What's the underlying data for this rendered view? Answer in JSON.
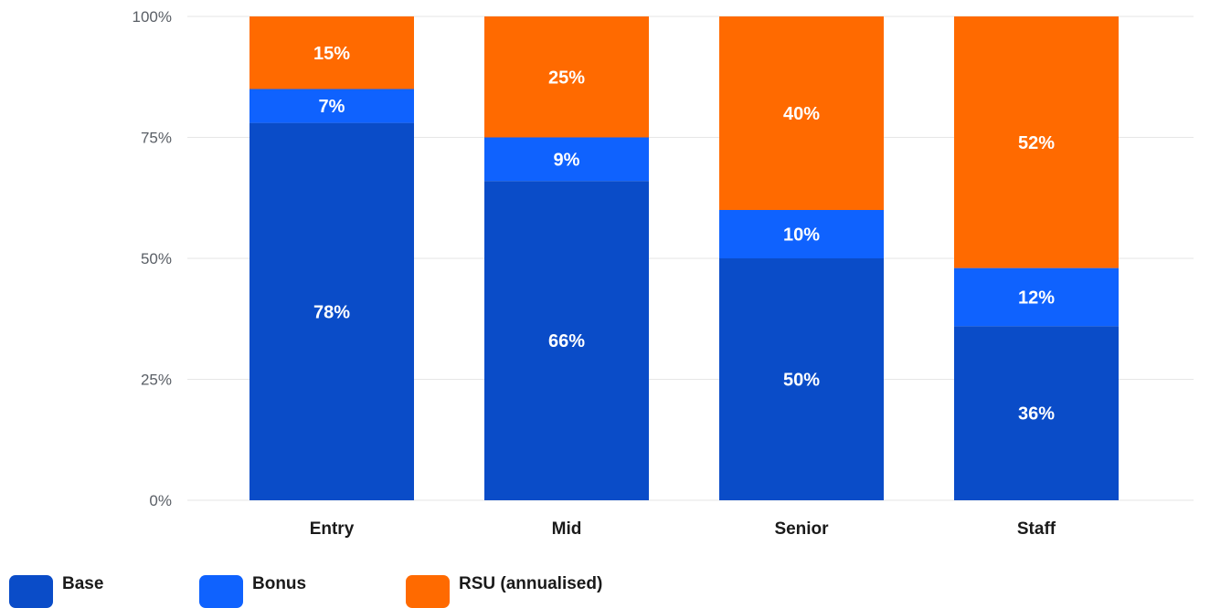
{
  "chart_data": {
    "type": "bar",
    "stacked": true,
    "categories": [
      "Entry",
      "Mid",
      "Senior",
      "Staff"
    ],
    "series": [
      {
        "name": "Base",
        "color": "#0a4cc8",
        "values": [
          78,
          66,
          50,
          36
        ]
      },
      {
        "name": "Bonus",
        "color": "#0f62fe",
        "values": [
          7,
          9,
          10,
          12
        ]
      },
      {
        "name": "RSU (annualised)",
        "color": "#ff6a00",
        "values": [
          15,
          25,
          40,
          52
        ]
      }
    ],
    "yticks": [
      0,
      25,
      50,
      75,
      100
    ],
    "ytick_labels": [
      "0%",
      "25%",
      "50%",
      "75%",
      "100%"
    ],
    "ylim": [
      0,
      100
    ],
    "grid": true,
    "value_suffix": "%",
    "legend": "bottom-left"
  }
}
